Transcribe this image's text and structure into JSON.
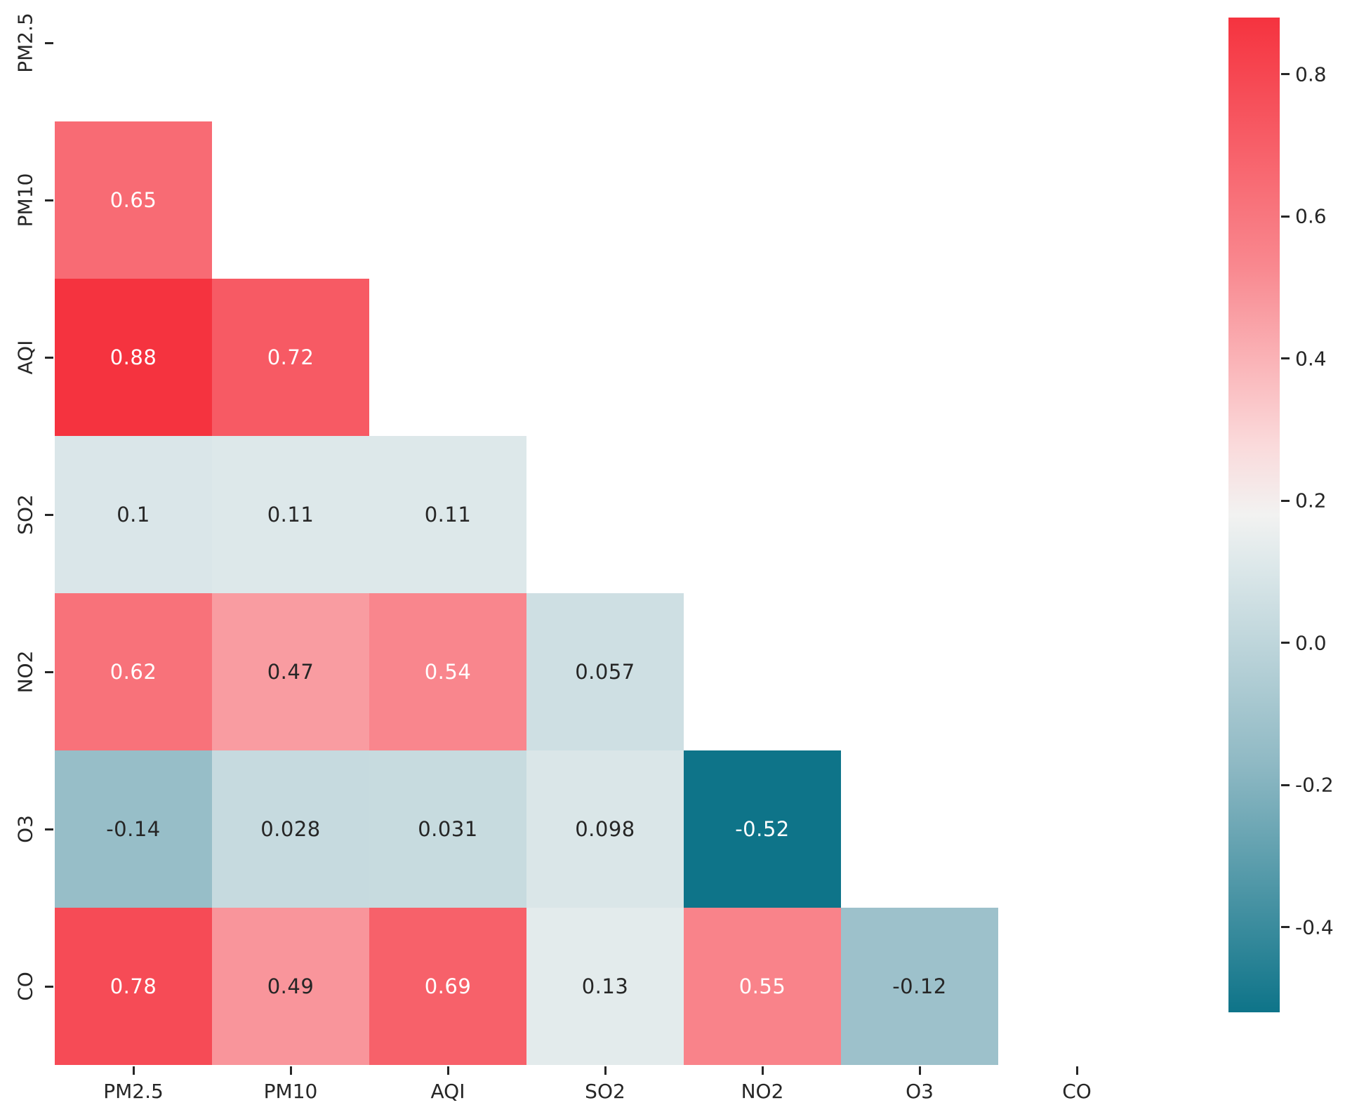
{
  "chart_data": {
    "type": "heatmap",
    "subtype": "correlation-matrix-lower-triangle",
    "title": "",
    "x_labels": [
      "PM2.5",
      "PM10",
      "AQI",
      "SO2",
      "NO2",
      "O3",
      "CO"
    ],
    "y_labels": [
      "PM2.5",
      "PM10",
      "AQI",
      "SO2",
      "NO2",
      "O3",
      "CO"
    ],
    "mask": "upper-triangle-and-diagonal-hidden",
    "cells": [
      {
        "row": "PM10",
        "col": "PM2.5",
        "value": 0.65,
        "label": "0.65"
      },
      {
        "row": "AQI",
        "col": "PM2.5",
        "value": 0.88,
        "label": "0.88"
      },
      {
        "row": "AQI",
        "col": "PM10",
        "value": 0.72,
        "label": "0.72"
      },
      {
        "row": "SO2",
        "col": "PM2.5",
        "value": 0.1,
        "label": "0.1"
      },
      {
        "row": "SO2",
        "col": "PM10",
        "value": 0.11,
        "label": "0.11"
      },
      {
        "row": "SO2",
        "col": "AQI",
        "value": 0.11,
        "label": "0.11"
      },
      {
        "row": "NO2",
        "col": "PM2.5",
        "value": 0.62,
        "label": "0.62"
      },
      {
        "row": "NO2",
        "col": "PM10",
        "value": 0.47,
        "label": "0.47"
      },
      {
        "row": "NO2",
        "col": "AQI",
        "value": 0.54,
        "label": "0.54"
      },
      {
        "row": "NO2",
        "col": "SO2",
        "value": 0.057,
        "label": "0.057"
      },
      {
        "row": "O3",
        "col": "PM2.5",
        "value": -0.14,
        "label": "-0.14"
      },
      {
        "row": "O3",
        "col": "PM10",
        "value": 0.028,
        "label": "0.028"
      },
      {
        "row": "O3",
        "col": "AQI",
        "value": 0.031,
        "label": "0.031"
      },
      {
        "row": "O3",
        "col": "SO2",
        "value": 0.098,
        "label": "0.098"
      },
      {
        "row": "O3",
        "col": "NO2",
        "value": -0.52,
        "label": "-0.52"
      },
      {
        "row": "CO",
        "col": "PM2.5",
        "value": 0.78,
        "label": "0.78"
      },
      {
        "row": "CO",
        "col": "PM10",
        "value": 0.49,
        "label": "0.49"
      },
      {
        "row": "CO",
        "col": "AQI",
        "value": 0.69,
        "label": "0.69"
      },
      {
        "row": "CO",
        "col": "SO2",
        "value": 0.13,
        "label": "0.13"
      },
      {
        "row": "CO",
        "col": "NO2",
        "value": 0.55,
        "label": "0.55"
      },
      {
        "row": "CO",
        "col": "O3",
        "value": -0.12,
        "label": "-0.12"
      }
    ],
    "colorbar": {
      "vmin": -0.52,
      "vmax": 0.88,
      "tick_labels": [
        "0.8",
        "0.6",
        "0.4",
        "0.2",
        "0.0",
        "-0.2",
        "-0.4"
      ],
      "tick_values": [
        0.8,
        0.6,
        0.4,
        0.2,
        0.0,
        -0.2,
        -0.4
      ],
      "position": "right"
    },
    "colormap_stops": [
      {
        "t": 0.0,
        "color": "#0e7489"
      },
      {
        "t": 0.25,
        "color": "#8fb9c4"
      },
      {
        "t": 0.45,
        "color": "#dde8ea"
      },
      {
        "t": 0.5,
        "color": "#f2f2f1"
      },
      {
        "t": 0.57,
        "color": "#fadadb"
      },
      {
        "t": 0.75,
        "color": "#f9888f"
      },
      {
        "t": 1.0,
        "color": "#f5333f"
      }
    ],
    "annotation_text_colors": {
      "dark": "#262626",
      "light": "#ffffff"
    },
    "grid": "off",
    "legend": "none"
  }
}
